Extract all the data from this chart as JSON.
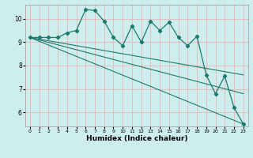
{
  "xlabel": "Humidex (Indice chaleur)",
  "bg_color": "#ceeeed",
  "grid_color": "#e8b4b4",
  "line_color": "#1a7a6e",
  "x_data": [
    0,
    1,
    2,
    3,
    4,
    5,
    6,
    7,
    8,
    9,
    10,
    11,
    12,
    13,
    14,
    15,
    16,
    17,
    18,
    19,
    20,
    21,
    22,
    23
  ],
  "y_data": [
    9.2,
    9.2,
    9.2,
    9.2,
    9.4,
    9.5,
    10.4,
    10.35,
    9.9,
    9.2,
    8.85,
    9.7,
    9.0,
    9.9,
    9.5,
    9.85,
    9.2,
    8.85,
    9.25,
    7.6,
    6.8,
    7.55,
    6.2,
    5.5
  ],
  "trend_lines": [
    [
      9.2,
      9.2,
      7.6
    ],
    [
      9.2,
      9.2,
      6.8
    ],
    [
      9.2,
      9.2,
      5.5
    ]
  ],
  "ylim": [
    5.4,
    10.6
  ],
  "xlim": [
    -0.5,
    23.5
  ],
  "yticks": [
    6,
    7,
    8,
    9,
    10
  ],
  "xticks": [
    0,
    1,
    2,
    3,
    4,
    5,
    6,
    7,
    8,
    9,
    10,
    11,
    12,
    13,
    14,
    15,
    16,
    17,
    18,
    19,
    20,
    21,
    22,
    23
  ]
}
